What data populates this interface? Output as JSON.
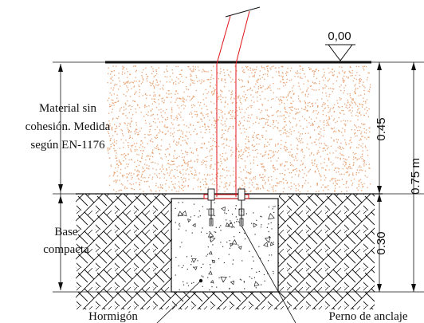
{
  "level_marker": "0,00",
  "labels": {
    "material": [
      "Material sin",
      "cohesión. Medida",
      "según EN-1176"
    ],
    "base": [
      "Base",
      "compacta"
    ],
    "hormigon": "Hormigón",
    "perno": "Perno de anclaje"
  },
  "dimensions": {
    "upper": "0.45",
    "lower": "0.30",
    "total": "0.75 m"
  },
  "colors": {
    "post": "#e0141a",
    "fill_dots": "#e8a272",
    "lines": "#111111"
  }
}
